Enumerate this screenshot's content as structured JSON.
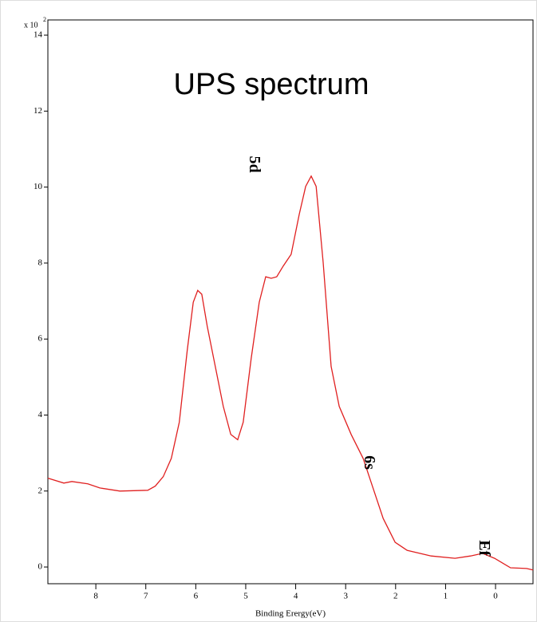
{
  "chart_data": {
    "type": "line",
    "title": "UPS spectrum",
    "xlabel": "Binding Erergy(eV)",
    "ylabel_multiplier": {
      "base": "x 10",
      "exponent": "2"
    },
    "annotations": [
      {
        "text": "5d",
        "x": 4.85,
        "y": 10.6
      },
      {
        "text": "6s",
        "x": 2.55,
        "y": 2.75
      },
      {
        "text": "Ef",
        "x": 0.25,
        "y": 0.5
      }
    ],
    "color": "#e02020",
    "x": [
      8.96,
      8.64,
      8.48,
      8.16,
      7.92,
      7.52,
      6.96,
      6.81,
      6.65,
      6.49,
      6.33,
      6.17,
      6.05,
      5.96,
      5.88,
      5.77,
      5.61,
      5.45,
      5.3,
      5.16,
      5.05,
      4.89,
      4.73,
      4.6,
      4.49,
      4.38,
      4.25,
      4.09,
      3.93,
      3.8,
      3.69,
      3.59,
      3.45,
      3.29,
      3.13,
      2.89,
      2.65,
      2.49,
      2.25,
      2.01,
      1.77,
      1.29,
      0.81,
      0.5,
      0.26,
      0.02,
      -0.3,
      -0.62,
      -0.75
    ],
    "values": [
      2.34,
      2.21,
      2.25,
      2.19,
      2.08,
      2.0,
      2.02,
      2.13,
      2.38,
      2.86,
      3.81,
      5.71,
      6.97,
      7.28,
      7.18,
      6.34,
      5.28,
      4.23,
      3.49,
      3.35,
      3.81,
      5.49,
      6.97,
      7.64,
      7.6,
      7.64,
      7.92,
      8.23,
      9.28,
      10.02,
      10.29,
      10.02,
      8.02,
      5.28,
      4.23,
      3.49,
      2.86,
      2.23,
      1.28,
      0.65,
      0.44,
      0.29,
      0.23,
      0.29,
      0.36,
      0.23,
      -0.02,
      -0.04,
      -0.08
    ],
    "xlim": [
      8.96,
      -0.75
    ],
    "xticks": [
      8,
      7,
      6,
      5,
      4,
      3,
      2,
      1,
      0
    ],
    "ylim": [
      -0.44,
      14.4
    ],
    "yticks": [
      0,
      2,
      4,
      6,
      8,
      10,
      12,
      14
    ]
  }
}
